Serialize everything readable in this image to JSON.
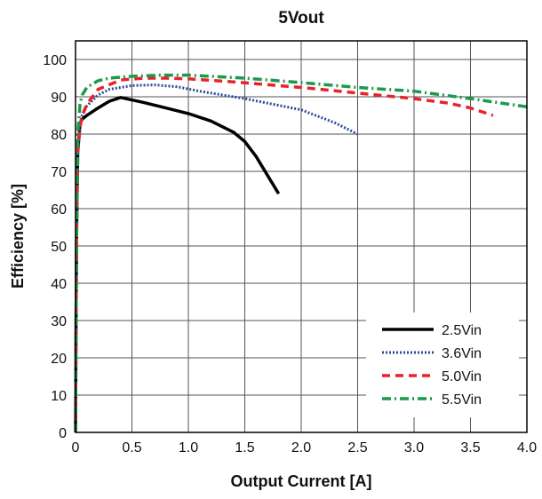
{
  "chart_data": {
    "type": "line",
    "title": "5Vout",
    "xlabel": "Output Current [A]",
    "ylabel": "Efficiency [%]",
    "xlim": [
      0,
      4.0
    ],
    "ylim": [
      0,
      105
    ],
    "x_ticks": [
      "0",
      "0.5",
      "1.0",
      "1.5",
      "2.0",
      "2.5",
      "3.0",
      "3.5",
      "4.0"
    ],
    "y_ticks": [
      "0",
      "10",
      "20",
      "30",
      "40",
      "50",
      "60",
      "70",
      "80",
      "90",
      "100"
    ],
    "grid": true,
    "legend_position": "bottom-right",
    "series": [
      {
        "name": "2.5Vin",
        "color": "#000000",
        "style": "solid",
        "x": [
          0.0,
          0.005,
          0.01,
          0.02,
          0.04,
          0.06,
          0.1,
          0.2,
          0.3,
          0.4,
          0.6,
          0.8,
          1.0,
          1.2,
          1.4,
          1.5,
          1.6,
          1.7,
          1.8
        ],
        "y": [
          0,
          30,
          55,
          75,
          83,
          84,
          85,
          87,
          88.8,
          89.8,
          88.5,
          87,
          85.5,
          83.5,
          80.5,
          78,
          74,
          69,
          64
        ]
      },
      {
        "name": "3.6Vin",
        "color": "#2a4b9b",
        "style": "dotted",
        "x": [
          0.0,
          0.005,
          0.01,
          0.02,
          0.04,
          0.06,
          0.1,
          0.2,
          0.3,
          0.5,
          0.7,
          0.9,
          1.1,
          1.5,
          2.0,
          2.3,
          2.5
        ],
        "y": [
          0,
          30,
          55,
          75,
          83,
          85,
          87.5,
          90.5,
          92,
          93,
          93.2,
          92.7,
          91.5,
          89.5,
          86.5,
          83,
          80
        ]
      },
      {
        "name": "5.0Vin",
        "color": "#e8232a",
        "style": "dashed",
        "x": [
          0.0,
          0.005,
          0.01,
          0.02,
          0.04,
          0.06,
          0.1,
          0.2,
          0.4,
          0.6,
          0.8,
          1.0,
          1.4,
          2.0,
          2.5,
          3.0,
          3.3,
          3.5,
          3.7
        ],
        "y": [
          0,
          30,
          55,
          75,
          82,
          85,
          88,
          92,
          94.5,
          95,
          95,
          94.8,
          94,
          92.5,
          91,
          89.5,
          88.3,
          87,
          85
        ]
      },
      {
        "name": "5.5Vin",
        "color": "#1a9a4a",
        "style": "dashdot",
        "x": [
          0.0,
          0.005,
          0.01,
          0.02,
          0.04,
          0.06,
          0.1,
          0.2,
          0.3,
          0.5,
          0.75,
          1.0,
          1.5,
          2.0,
          2.5,
          3.0,
          3.5,
          4.0
        ],
        "y": [
          0,
          30,
          55,
          80,
          88,
          90.5,
          92.5,
          94.3,
          95,
          95.5,
          95.8,
          95.8,
          95,
          93.8,
          92.5,
          91.5,
          89.5,
          87.3
        ]
      }
    ]
  }
}
